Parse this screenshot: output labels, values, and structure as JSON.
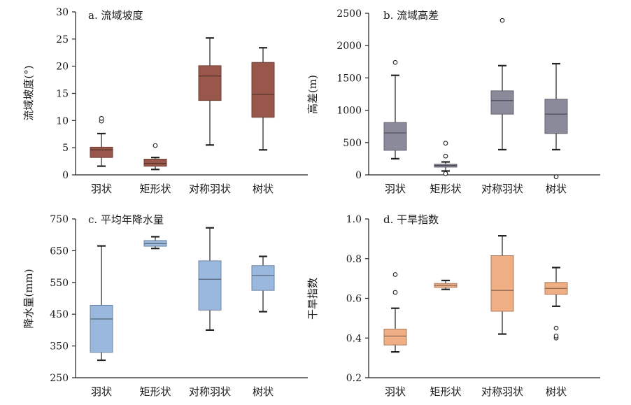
{
  "chart_data": [
    {
      "type": "boxplot",
      "title": "a. 流域坡度",
      "ylabel": "流域坡度(°)",
      "ylim": [
        0,
        30
      ],
      "yticks": [
        "0",
        "5",
        "10",
        "15",
        "20",
        "25",
        "30"
      ],
      "categories": [
        "羽状",
        "矩形状",
        "对称羽状",
        "树状"
      ],
      "color": "#98574a",
      "boxes": [
        {
          "category": "羽状",
          "whisker_low": 1.6,
          "q1": 3.2,
          "median": 4.6,
          "q3": 5.1,
          "whisker_high": 7.6,
          "outliers": [
            9.9,
            10.4
          ]
        },
        {
          "category": "矩形状",
          "whisker_low": 1.0,
          "q1": 1.6,
          "median": 2.1,
          "q3": 2.9,
          "whisker_high": 3.2,
          "outliers": [
            5.4
          ]
        },
        {
          "category": "对称羽状",
          "whisker_low": 5.5,
          "q1": 13.7,
          "median": 18.2,
          "q3": 20.1,
          "whisker_high": 25.2,
          "outliers": []
        },
        {
          "category": "树状",
          "whisker_low": 4.6,
          "q1": 10.6,
          "median": 14.8,
          "q3": 20.7,
          "whisker_high": 23.4,
          "outliers": []
        }
      ]
    },
    {
      "type": "boxplot",
      "title": "b. 流域高差",
      "ylabel": "高差(m)",
      "ylim": [
        0,
        2500
      ],
      "yticks": [
        "0",
        "500",
        "1000",
        "1500",
        "2000",
        "2500"
      ],
      "categories": [
        "羽状",
        "矩形状",
        "对称羽状",
        "树状"
      ],
      "color": "#8a8a9a",
      "boxes": [
        {
          "category": "羽状",
          "whisker_low": 250,
          "q1": 380,
          "median": 650,
          "q3": 810,
          "whisker_high": 1540,
          "outliers": [
            1740
          ]
        },
        {
          "category": "矩形状",
          "whisker_low": 60,
          "q1": 120,
          "median": 145,
          "q3": 165,
          "whisker_high": 200,
          "outliers": [
            20,
            290,
            490
          ]
        },
        {
          "category": "对称羽状",
          "whisker_low": 390,
          "q1": 940,
          "median": 1150,
          "q3": 1300,
          "whisker_high": 1690,
          "outliers": [
            2390
          ]
        },
        {
          "category": "树状",
          "whisker_low": 390,
          "q1": 640,
          "median": 940,
          "q3": 1170,
          "whisker_high": 1720,
          "outliers": [
            -30
          ]
        }
      ]
    },
    {
      "type": "boxplot",
      "title": "c. 平均年降水量",
      "ylabel": "降水量(mm)",
      "ylim": [
        250,
        750
      ],
      "yticks": [
        "250",
        "350",
        "450",
        "550",
        "650",
        "750"
      ],
      "categories": [
        "羽状",
        "矩形状",
        "对称羽状",
        "树状"
      ],
      "color": "#9ab8de",
      "boxes": [
        {
          "category": "羽状",
          "whisker_low": 305,
          "q1": 330,
          "median": 435,
          "q3": 478,
          "whisker_high": 665,
          "outliers": []
        },
        {
          "category": "矩形状",
          "whisker_low": 657,
          "q1": 664,
          "median": 672,
          "q3": 682,
          "whisker_high": 694,
          "outliers": []
        },
        {
          "category": "对称羽状",
          "whisker_low": 400,
          "q1": 463,
          "median": 560,
          "q3": 618,
          "whisker_high": 722,
          "outliers": []
        },
        {
          "category": "树状",
          "whisker_low": 458,
          "q1": 525,
          "median": 572,
          "q3": 603,
          "whisker_high": 632,
          "outliers": []
        }
      ]
    },
    {
      "type": "boxplot",
      "title": "d. 干旱指数",
      "ylabel": "干旱指数",
      "ylim": [
        0.2,
        1.0
      ],
      "yticks": [
        "0.2",
        "0.4",
        "0.6",
        "0.8",
        "1.0"
      ],
      "categories": [
        "羽状",
        "矩形状",
        "对称羽状",
        "树状"
      ],
      "color": "#efae84",
      "boxes": [
        {
          "category": "羽状",
          "whisker_low": 0.33,
          "q1": 0.365,
          "median": 0.41,
          "q3": 0.445,
          "whisker_high": 0.55,
          "outliers": [
            0.63,
            0.72
          ]
        },
        {
          "category": "矩形状",
          "whisker_low": 0.645,
          "q1": 0.655,
          "median": 0.665,
          "q3": 0.675,
          "whisker_high": 0.69,
          "outliers": []
        },
        {
          "category": "对称羽状",
          "whisker_low": 0.42,
          "q1": 0.535,
          "median": 0.64,
          "q3": 0.815,
          "whisker_high": 0.915,
          "outliers": []
        },
        {
          "category": "树状",
          "whisker_low": 0.56,
          "q1": 0.62,
          "median": 0.65,
          "q3": 0.68,
          "whisker_high": 0.755,
          "outliers": [
            0.4,
            0.41,
            0.45
          ]
        }
      ]
    }
  ]
}
